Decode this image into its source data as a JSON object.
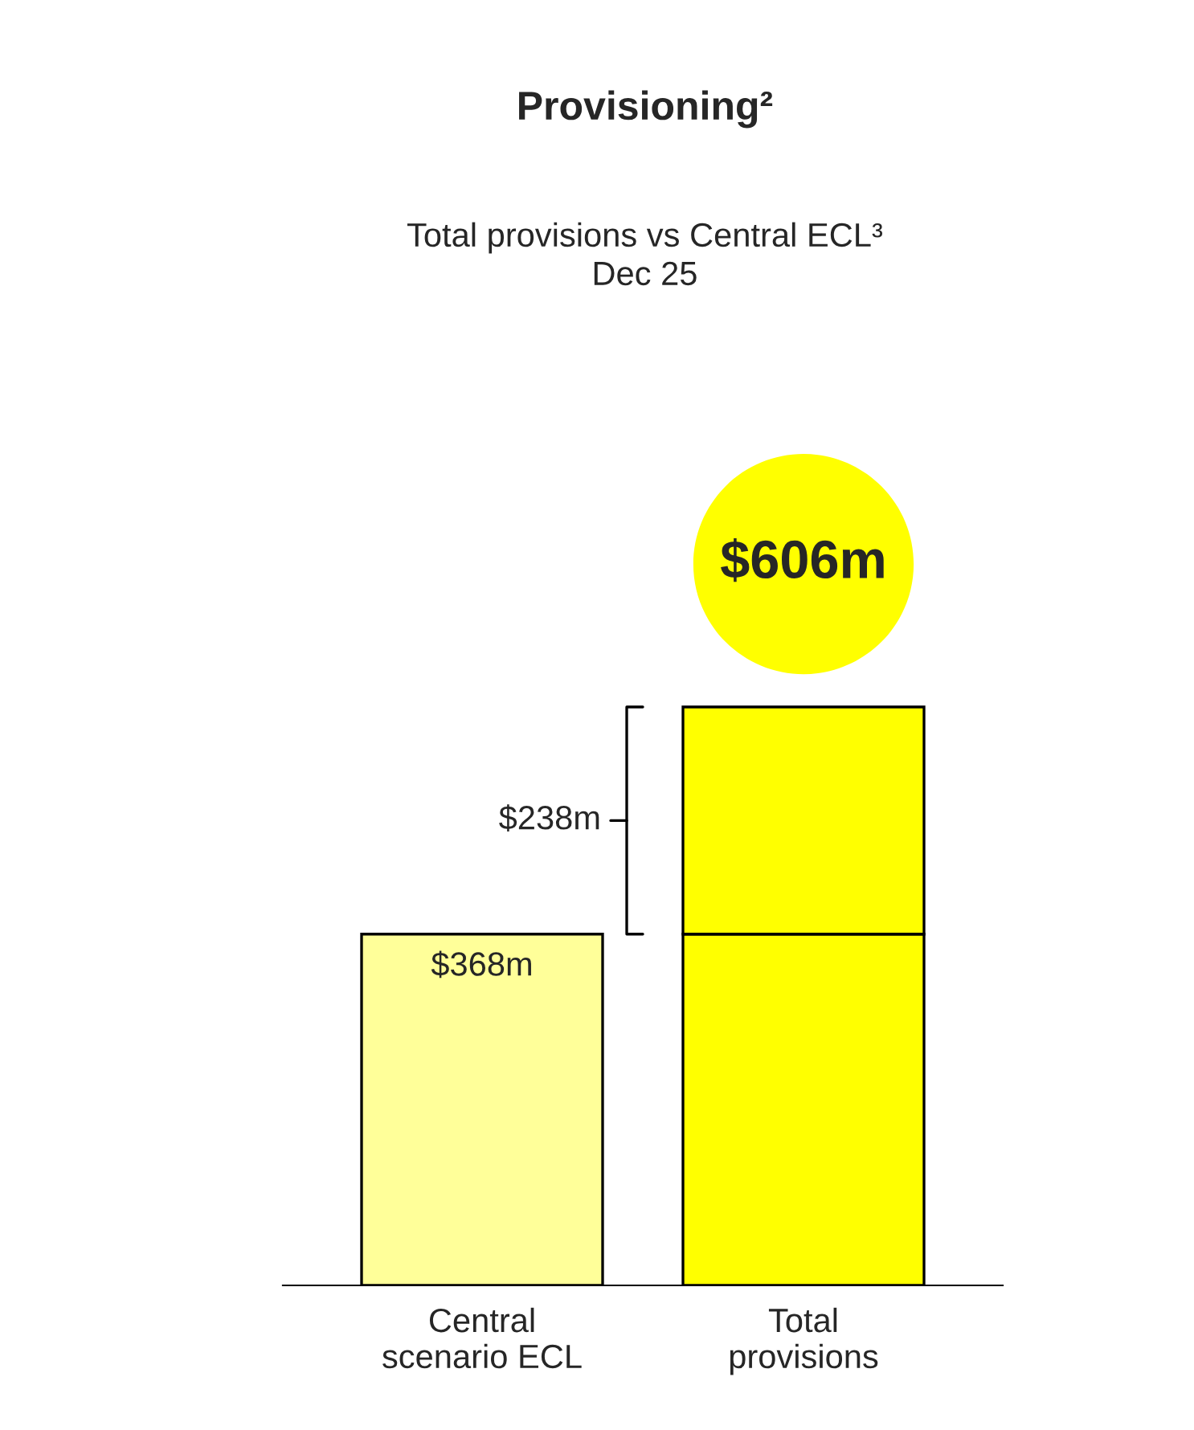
{
  "chart_data": {
    "type": "bar",
    "title": "Provisioning²",
    "subtitle": "Total provisions vs Central ECL³\nDec 25",
    "categories": [
      "Central\nscenario ECL",
      "Total\nprovisions"
    ],
    "stacked": true,
    "series": [
      {
        "colors": [
          "#ffff99",
          "#ffff00"
        ],
        "values": [
          368,
          368
        ],
        "value_labels": [
          "$368m",
          null
        ]
      },
      {
        "color": "#ffff00",
        "values": [
          null,
          238
        ]
      }
    ],
    "annotations": [
      "$606m",
      "$238m"
    ],
    "grid": false,
    "legend": false
  }
}
